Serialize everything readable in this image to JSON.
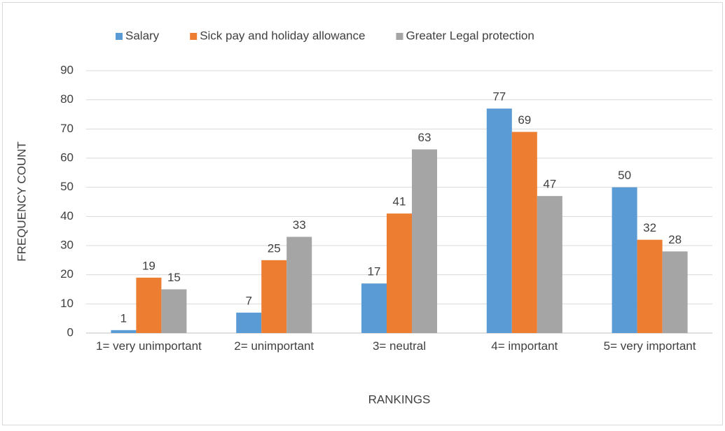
{
  "chart_data": {
    "type": "bar",
    "categories": [
      "1=  very unimportant",
      "2= unimportant",
      "3= neutral",
      "4= important",
      "5= very important"
    ],
    "series": [
      {
        "name": "Salary",
        "color": "#5b9bd5",
        "values": [
          1,
          7,
          17,
          77,
          50
        ]
      },
      {
        "name": "Sick pay and holiday allowance",
        "color": "#ed7d31",
        "values": [
          19,
          25,
          41,
          69,
          32
        ]
      },
      {
        "name": "Greater Legal protection",
        "color": "#a5a5a5",
        "values": [
          15,
          33,
          63,
          47,
          28
        ]
      }
    ],
    "x_label": "RANKINGS",
    "y_label": "FREQUENCY COUNT",
    "ylim": [
      0,
      90
    ],
    "yticks": [
      0,
      10,
      20,
      30,
      40,
      50,
      60,
      70,
      80,
      90
    ],
    "grid": true,
    "legend": "top"
  }
}
